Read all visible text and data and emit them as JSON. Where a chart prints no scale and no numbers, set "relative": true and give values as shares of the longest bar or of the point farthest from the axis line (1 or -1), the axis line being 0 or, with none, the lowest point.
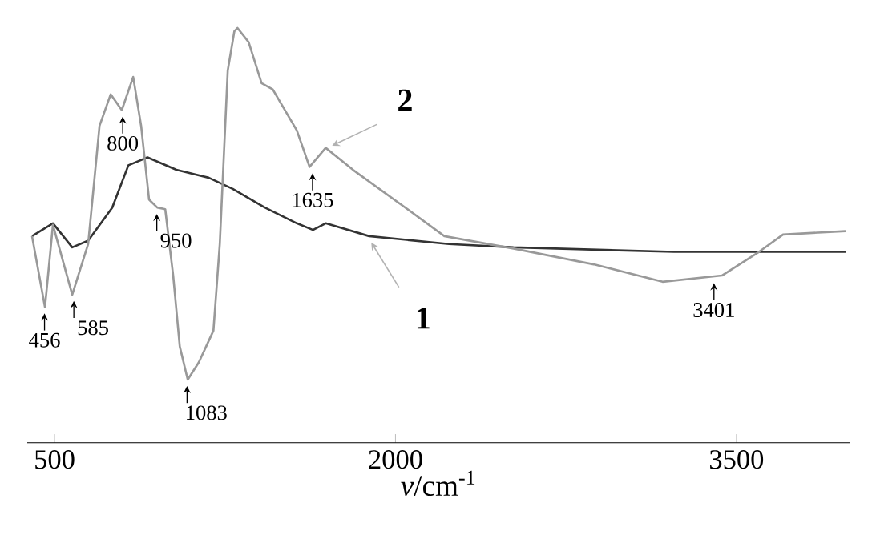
{
  "chart_data": {
    "type": "line",
    "relative": true,
    "xlabel": "*ν*/cm$^{-1}$",
    "xlim": [
      380,
      4000
    ],
    "xticks": [
      500,
      2000,
      3500
    ],
    "series": [
      {
        "name": "1",
        "color": "#333333",
        "x": [
          401,
          493,
          578,
          648,
          754,
          825,
          909,
          1036,
          1178,
          1284,
          1425,
          1566,
          1637,
          1693,
          1884,
          2236,
          2519,
          3225,
          3980
        ],
        "values": [
          0.498,
          0.529,
          0.471,
          0.487,
          0.567,
          0.669,
          0.688,
          0.658,
          0.639,
          0.612,
          0.567,
          0.529,
          0.513,
          0.529,
          0.498,
          0.479,
          0.471,
          0.46,
          0.46
        ]
      },
      {
        "name": "2",
        "color": "#999999",
        "x": [
          401,
          458,
          493,
          578,
          648,
          698,
          747,
          796,
          846,
          881,
          916,
          952,
          987,
          1022,
          1051,
          1086,
          1135,
          1199,
          1227,
          1262,
          1291,
          1305,
          1354,
          1411,
          1460,
          1566,
          1622,
          1693,
          1813,
          2025,
          2215,
          2519,
          2872,
          3175,
          3436,
          3599,
          3705,
          3980
        ],
        "values": [
          0.498,
          0.327,
          0.525,
          0.357,
          0.479,
          0.764,
          0.84,
          0.802,
          0.882,
          0.764,
          0.586,
          0.567,
          0.563,
          0.403,
          0.232,
          0.152,
          0.194,
          0.27,
          0.479,
          0.897,
          0.992,
          1,
          0.966,
          0.867,
          0.852,
          0.753,
          0.665,
          0.711,
          0.658,
          0.574,
          0.498,
          0.468,
          0.43,
          0.388,
          0.403,
          0.46,
          0.502,
          0.51
        ]
      }
    ],
    "annotations": [
      {
        "text": "456",
        "x": 456,
        "y": 0.327
      },
      {
        "text": "585",
        "x": 585,
        "y": 0.357
      },
      {
        "text": "800",
        "x": 800,
        "y": 0.802
      },
      {
        "text": "950",
        "x": 950,
        "y": 0.567
      },
      {
        "text": "1083",
        "x": 1083,
        "y": 0.152
      },
      {
        "text": "1635",
        "x": 1635,
        "y": 0.665
      },
      {
        "text": "3401",
        "x": 3401,
        "y": 0.4
      }
    ]
  }
}
